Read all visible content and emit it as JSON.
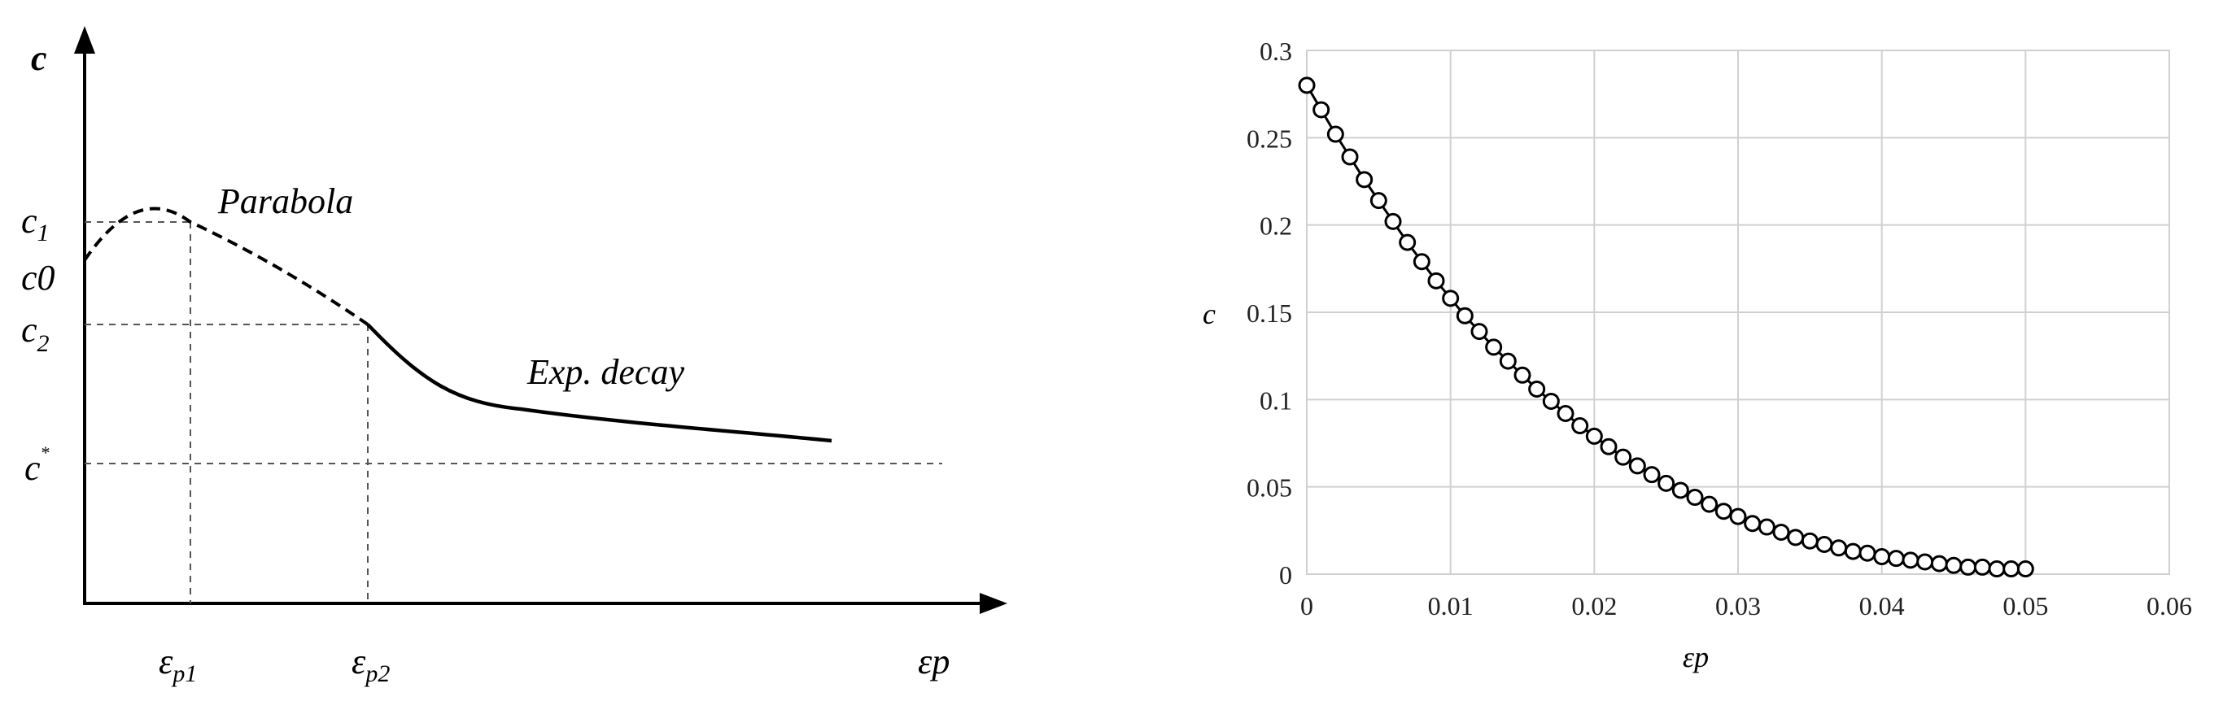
{
  "left_panel": {
    "y_axis_label": "c",
    "x_axis_label": "εp",
    "level_labels": {
      "c1": "c",
      "c1_sub": "1",
      "c0": "c0",
      "c2": "c",
      "c2_sub": "2",
      "cstar": "c",
      "cstar_sup": "*"
    },
    "tick_labels": {
      "ep1": "ε",
      "ep1_sub": "p1",
      "ep2": "ε",
      "ep2_sub": "p2"
    },
    "annotations": {
      "parabola": "Parabola",
      "exp_decay": "Exp. decay"
    }
  },
  "chart_data": [
    {
      "type": "line",
      "xlabel": "εp",
      "ylabel": "c",
      "x": [
        0,
        0.001,
        0.002,
        0.003,
        0.004,
        0.005,
        0.006,
        0.007,
        0.008,
        0.009,
        0.01,
        0.011,
        0.012,
        0.013,
        0.014,
        0.015,
        0.016,
        0.017,
        0.018,
        0.019,
        0.02,
        0.021,
        0.022,
        0.023,
        0.024,
        0.025,
        0.026,
        0.027,
        0.028,
        0.029,
        0.03,
        0.031,
        0.032,
        0.033,
        0.034,
        0.035,
        0.036,
        0.037,
        0.038,
        0.039,
        0.04,
        0.041,
        0.042,
        0.043,
        0.044,
        0.045,
        0.046,
        0.047,
        0.048,
        0.049,
        0.05
      ],
      "series": [
        {
          "values": [
            0.28,
            0.266,
            0.252,
            0.239,
            0.226,
            0.214,
            0.202,
            0.19,
            0.179,
            0.168,
            0.158,
            0.148,
            0.139,
            0.13,
            0.122,
            0.114,
            0.106,
            0.099,
            0.092,
            0.085,
            0.079,
            0.073,
            0.067,
            0.062,
            0.057,
            0.052,
            0.048,
            0.044,
            0.04,
            0.036,
            0.033,
            0.029,
            0.027,
            0.024,
            0.021,
            0.019,
            0.017,
            0.015,
            0.013,
            0.012,
            0.01,
            0.009,
            0.008,
            0.007,
            0.006,
            0.005,
            0.004,
            0.004,
            0.003,
            0.003,
            0.003
          ]
        }
      ],
      "xlim": [
        0,
        0.06
      ],
      "ylim": [
        0,
        0.3
      ],
      "x_ticks": [
        "0",
        "0.01",
        "0.02",
        "0.03",
        "0.04",
        "0.05",
        "0.06"
      ],
      "y_ticks": [
        "0",
        "0.05",
        "0.1",
        "0.15",
        "0.2",
        "0.25",
        "0.3"
      ],
      "grid": true,
      "marker": "open-circle"
    }
  ]
}
